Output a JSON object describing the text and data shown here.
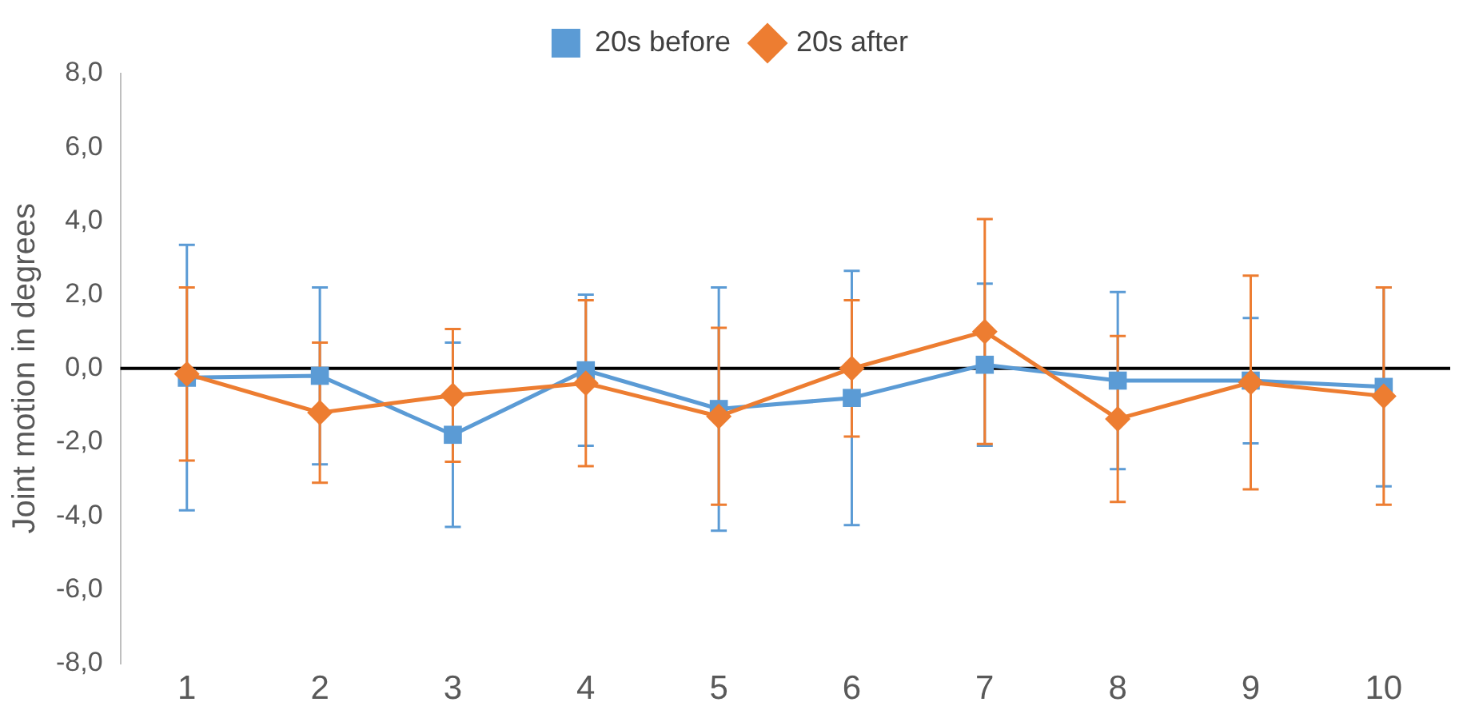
{
  "chart_data": {
    "type": "line",
    "ylabel": "Joint motion in degrees",
    "categories": [
      "1",
      "2",
      "3",
      "4",
      "5",
      "6",
      "7",
      "8",
      "9",
      "10"
    ],
    "series": [
      {
        "name": "20s before",
        "color": "#5b9bd5",
        "marker": "square",
        "values": [
          -0.25,
          -0.2,
          -1.8,
          -0.05,
          -1.1,
          -0.8,
          0.1,
          -0.33,
          -0.33,
          -0.5
        ],
        "errors": [
          3.6,
          2.4,
          2.5,
          2.05,
          3.3,
          3.45,
          2.2,
          2.4,
          1.7,
          2.7
        ]
      },
      {
        "name": "20s after",
        "color": "#ed7d31",
        "marker": "diamond",
        "values": [
          -0.15,
          -1.2,
          -0.73,
          -0.4,
          -1.3,
          0,
          1.0,
          -1.37,
          -0.38,
          -0.75
        ],
        "errors": [
          2.35,
          1.9,
          1.8,
          2.25,
          2.4,
          1.85,
          3.05,
          2.25,
          2.9,
          2.95
        ]
      }
    ],
    "ylim": [
      -8,
      8
    ],
    "yticks": [
      {
        "value": -8,
        "label": "-8,0"
      },
      {
        "value": -6,
        "label": "-6,0"
      },
      {
        "value": -4,
        "label": "-4,0"
      },
      {
        "value": -2,
        "label": "-2,0"
      },
      {
        "value": 0,
        "label": "0,0"
      },
      {
        "value": 2,
        "label": "2,0"
      },
      {
        "value": 4,
        "label": "4,0"
      },
      {
        "value": 6,
        "label": "6,0"
      },
      {
        "value": 8,
        "label": "8,0"
      }
    ],
    "ref_lines": [
      {
        "axis": "y",
        "value": 0,
        "color": "#000000"
      }
    ],
    "grid": false,
    "legend": "top",
    "line_style": "solid"
  }
}
